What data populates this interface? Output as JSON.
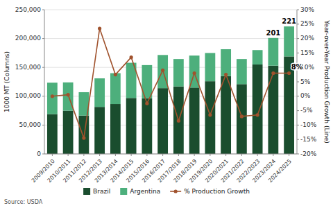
{
  "chart_data": {
    "type": "bar",
    "stacked": true,
    "categories": [
      "2009/2010",
      "2010/2011",
      "2011/2012",
      "2012/2013",
      "2013/2014",
      "2014/2015",
      "2015/2016",
      "2016/2017",
      "2017/2018",
      "2018/2019",
      "2019/2020",
      "2020/2021",
      "2021/2022",
      "2022/2023",
      "2023/2024",
      "2024/2025"
    ],
    "series": [
      {
        "name": "Brazil",
        "color": "#1a4d2e",
        "values": [
          69000,
          75000,
          66500,
          81500,
          86500,
          97000,
          96500,
          114000,
          117000,
          115000,
          126000,
          135000,
          121000,
          155000,
          153000,
          169000
        ]
      },
      {
        "name": "Argentina",
        "color": "#4daf7c",
        "values": [
          54500,
          49000,
          40500,
          49500,
          53500,
          61000,
          57500,
          57500,
          47500,
          55500,
          49000,
          46500,
          43500,
          25000,
          48000,
          52000
        ]
      },
      {
        "name": "% Production Growth",
        "type": "line",
        "axis": "y2",
        "color": "#a0522d",
        "marker": "circle",
        "values": [
          0.0,
          0.005,
          -0.145,
          0.235,
          0.075,
          0.135,
          -0.025,
          0.09,
          -0.085,
          0.08,
          -0.065,
          0.075,
          -0.07,
          -0.065,
          0.08,
          0.08
        ]
      }
    ],
    "ylabel": "1000 MT (Columns)",
    "y2label": "Year-over-Year Production Growth (Line)",
    "ylim": [
      0,
      250000
    ],
    "yticks": [
      0,
      {
        "value": 50000,
        "label": "50,000"
      },
      {
        "value": 100000,
        "label": "100,000"
      },
      {
        "value": 150000,
        "label": "150,000"
      },
      {
        "value": 200000,
        "label": "200,000"
      },
      {
        "value": 250000,
        "label": "250,000"
      }
    ],
    "y2lim": [
      -0.2,
      0.3
    ],
    "y2ticks": [
      {
        "value": -0.2,
        "label": "-20%"
      },
      {
        "value": -0.15,
        "label": "-15%"
      },
      {
        "value": -0.1,
        "label": "-10%"
      },
      {
        "value": -0.05,
        "label": "-5%"
      },
      {
        "value": 0.0,
        "label": "0%"
      },
      {
        "value": 0.05,
        "label": "5%"
      },
      {
        "value": 0.1,
        "label": "10%"
      },
      {
        "value": 0.15,
        "label": "15%"
      },
      {
        "value": 0.2,
        "label": "20%"
      },
      {
        "value": 0.25,
        "label": "25%"
      },
      {
        "value": 0.3,
        "label": "30%"
      }
    ],
    "grid": true,
    "legend": "bottom",
    "annotations": [
      {
        "text": "201",
        "x": "2023/2024"
      },
      {
        "text": "221",
        "x": "2024/2025"
      },
      {
        "text": "8%",
        "x": "2024/2025",
        "axis": "y2"
      }
    ],
    "source": "Source: USDA"
  }
}
